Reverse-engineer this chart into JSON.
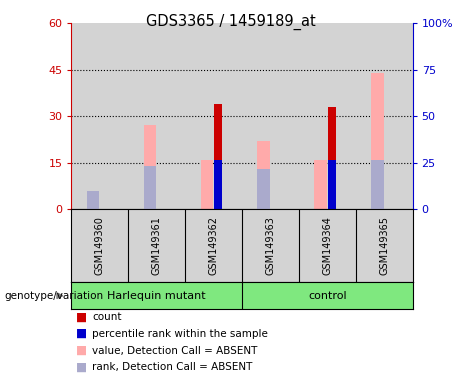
{
  "title": "GDS3365 / 1459189_at",
  "samples": [
    "GSM149360",
    "GSM149361",
    "GSM149362",
    "GSM149363",
    "GSM149364",
    "GSM149365"
  ],
  "count_values": [
    0,
    0,
    34,
    0,
    33,
    0
  ],
  "percentile_values": [
    0,
    0,
    16,
    0,
    16,
    0
  ],
  "absent_value_values": [
    5,
    27,
    16,
    22,
    16,
    44
  ],
  "absent_rank_values": [
    6,
    14,
    0,
    13,
    0,
    16
  ],
  "left_ylim": [
    0,
    60
  ],
  "right_ylim": [
    0,
    100
  ],
  "left_yticks": [
    0,
    15,
    30,
    45,
    60
  ],
  "right_yticks": [
    0,
    25,
    50,
    75,
    100
  ],
  "right_yticklabels": [
    "0",
    "25",
    "50",
    "75",
    "100%"
  ],
  "color_count": "#cc0000",
  "color_percentile": "#0000cc",
  "color_absent_value": "#ffaaaa",
  "color_absent_rank": "#aaaacc",
  "bg_sample": "#d3d3d3",
  "bg_green": "#7fe87f",
  "left_axis_color": "#cc0000",
  "right_axis_color": "#0000cc",
  "group1_label": "Harlequin mutant",
  "group2_label": "control",
  "genotype_label": "genotype/variation",
  "legend_items": [
    [
      "#cc0000",
      "count"
    ],
    [
      "#0000cc",
      "percentile rank within the sample"
    ],
    [
      "#ffaaaa",
      "value, Detection Call = ABSENT"
    ],
    [
      "#aaaacc",
      "rank, Detection Call = ABSENT"
    ]
  ]
}
